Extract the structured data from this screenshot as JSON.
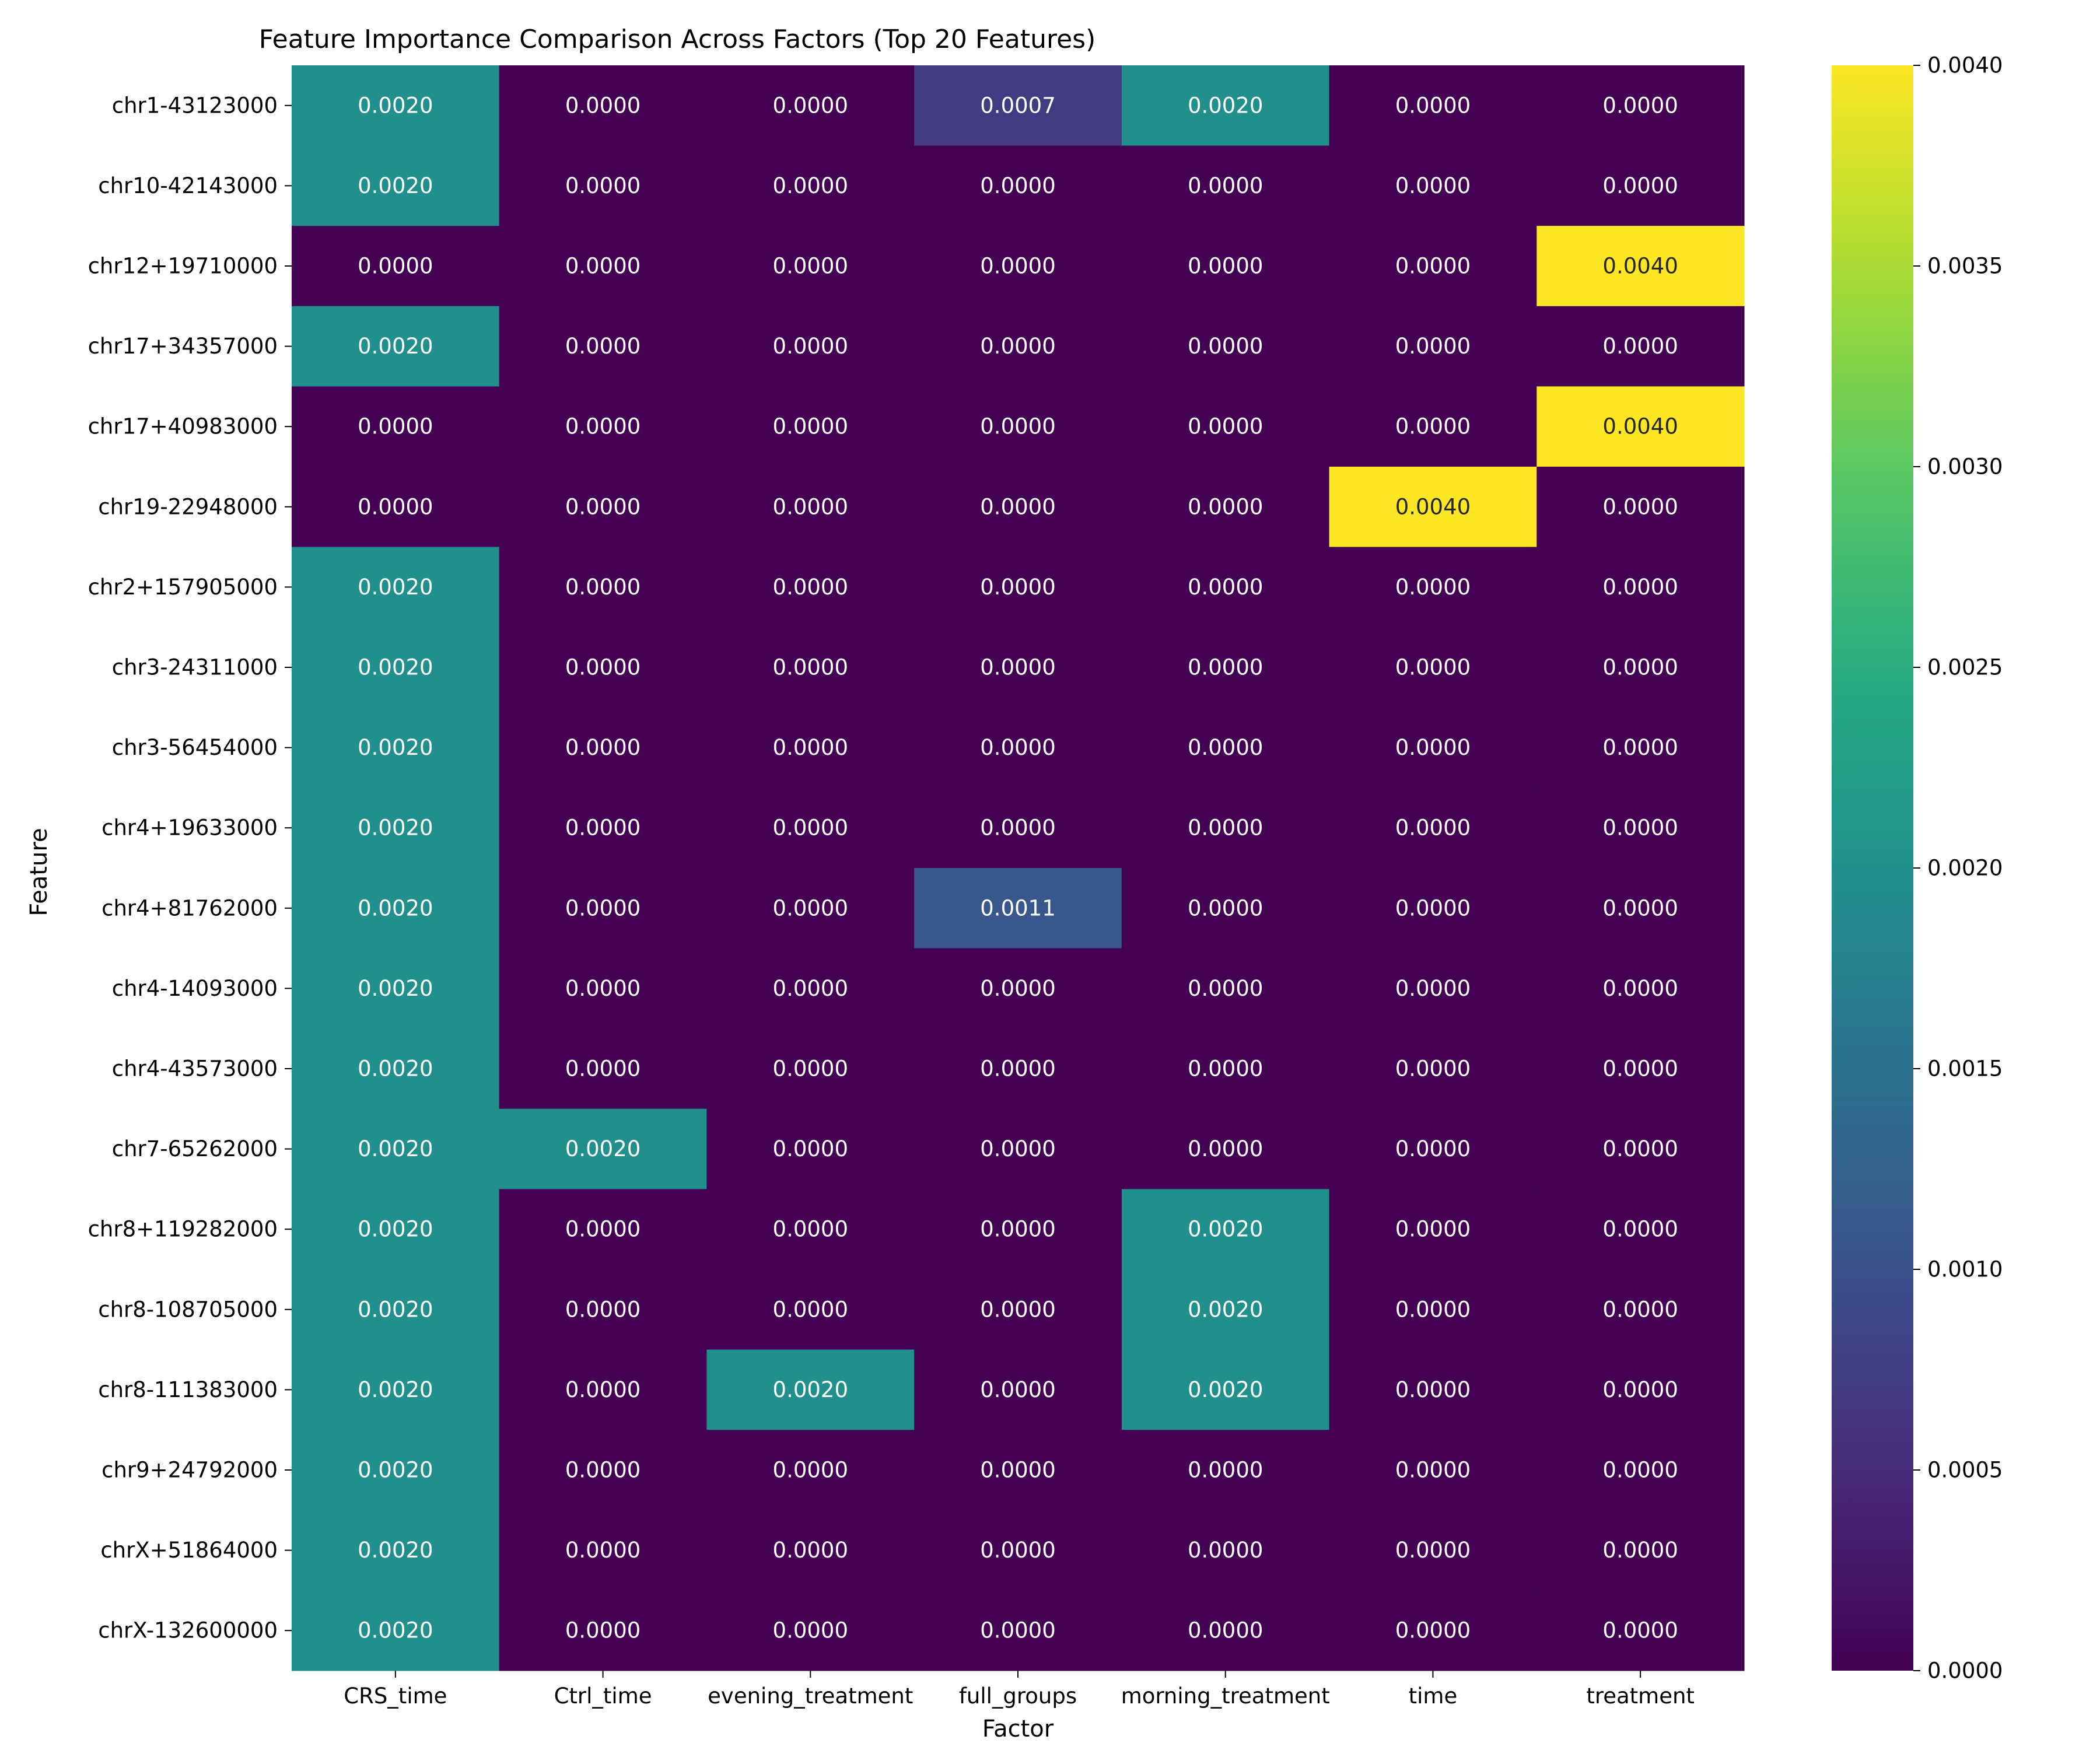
{
  "chart_data": {
    "type": "heatmap",
    "title": "Feature Importance Comparison Across Factors (Top 20 Features)",
    "xlabel": "Factor",
    "ylabel": "Feature",
    "columns": [
      "CRS_time",
      "Ctrl_time",
      "evening_treatment",
      "full_groups",
      "morning_treatment",
      "time",
      "treatment"
    ],
    "rows": [
      "chr1-43123000",
      "chr10-42143000",
      "chr12+19710000",
      "chr17+34357000",
      "chr17+40983000",
      "chr19-22948000",
      "chr2+157905000",
      "chr3-24311000",
      "chr3-56454000",
      "chr4+19633000",
      "chr4+81762000",
      "chr4-14093000",
      "chr4-43573000",
      "chr7-65262000",
      "chr8+119282000",
      "chr8-108705000",
      "chr8-111383000",
      "chr9+24792000",
      "chrX+51864000",
      "chrX-132600000"
    ],
    "values": [
      [
        0.002,
        0.0,
        0.0,
        0.0007,
        0.002,
        0.0,
        0.0
      ],
      [
        0.002,
        0.0,
        0.0,
        0.0,
        0.0,
        0.0,
        0.0
      ],
      [
        0.0,
        0.0,
        0.0,
        0.0,
        0.0,
        0.0,
        0.004
      ],
      [
        0.002,
        0.0,
        0.0,
        0.0,
        0.0,
        0.0,
        0.0
      ],
      [
        0.0,
        0.0,
        0.0,
        0.0,
        0.0,
        0.0,
        0.004
      ],
      [
        0.0,
        0.0,
        0.0,
        0.0,
        0.0,
        0.004,
        0.0
      ],
      [
        0.002,
        0.0,
        0.0,
        0.0,
        0.0,
        0.0,
        0.0
      ],
      [
        0.002,
        0.0,
        0.0,
        0.0,
        0.0,
        0.0,
        0.0
      ],
      [
        0.002,
        0.0,
        0.0,
        0.0,
        0.0,
        0.0,
        0.0
      ],
      [
        0.002,
        0.0,
        0.0,
        0.0,
        0.0,
        0.0,
        0.0
      ],
      [
        0.002,
        0.0,
        0.0,
        0.0011,
        0.0,
        0.0,
        0.0
      ],
      [
        0.002,
        0.0,
        0.0,
        0.0,
        0.0,
        0.0,
        0.0
      ],
      [
        0.002,
        0.0,
        0.0,
        0.0,
        0.0,
        0.0,
        0.0
      ],
      [
        0.002,
        0.002,
        0.0,
        0.0,
        0.0,
        0.0,
        0.0
      ],
      [
        0.002,
        0.0,
        0.0,
        0.0,
        0.002,
        0.0,
        0.0
      ],
      [
        0.002,
        0.0,
        0.0,
        0.0,
        0.002,
        0.0,
        0.0
      ],
      [
        0.002,
        0.0,
        0.002,
        0.0,
        0.002,
        0.0,
        0.0
      ],
      [
        0.002,
        0.0,
        0.0,
        0.0,
        0.0,
        0.0,
        0.0
      ],
      [
        0.002,
        0.0,
        0.0,
        0.0,
        0.0,
        0.0,
        0.0
      ],
      [
        0.002,
        0.0,
        0.0,
        0.0,
        0.0,
        0.0,
        0.0
      ]
    ],
    "value_format": "0.0000",
    "colormap": "viridis",
    "vmin": 0.0,
    "vmax": 0.004,
    "colorbar_ticks": [
      "0.0000",
      "0.0005",
      "0.0010",
      "0.0015",
      "0.0020",
      "0.0025",
      "0.0030",
      "0.0035",
      "0.0040"
    ],
    "colorbar_position": "right",
    "grid": false
  }
}
